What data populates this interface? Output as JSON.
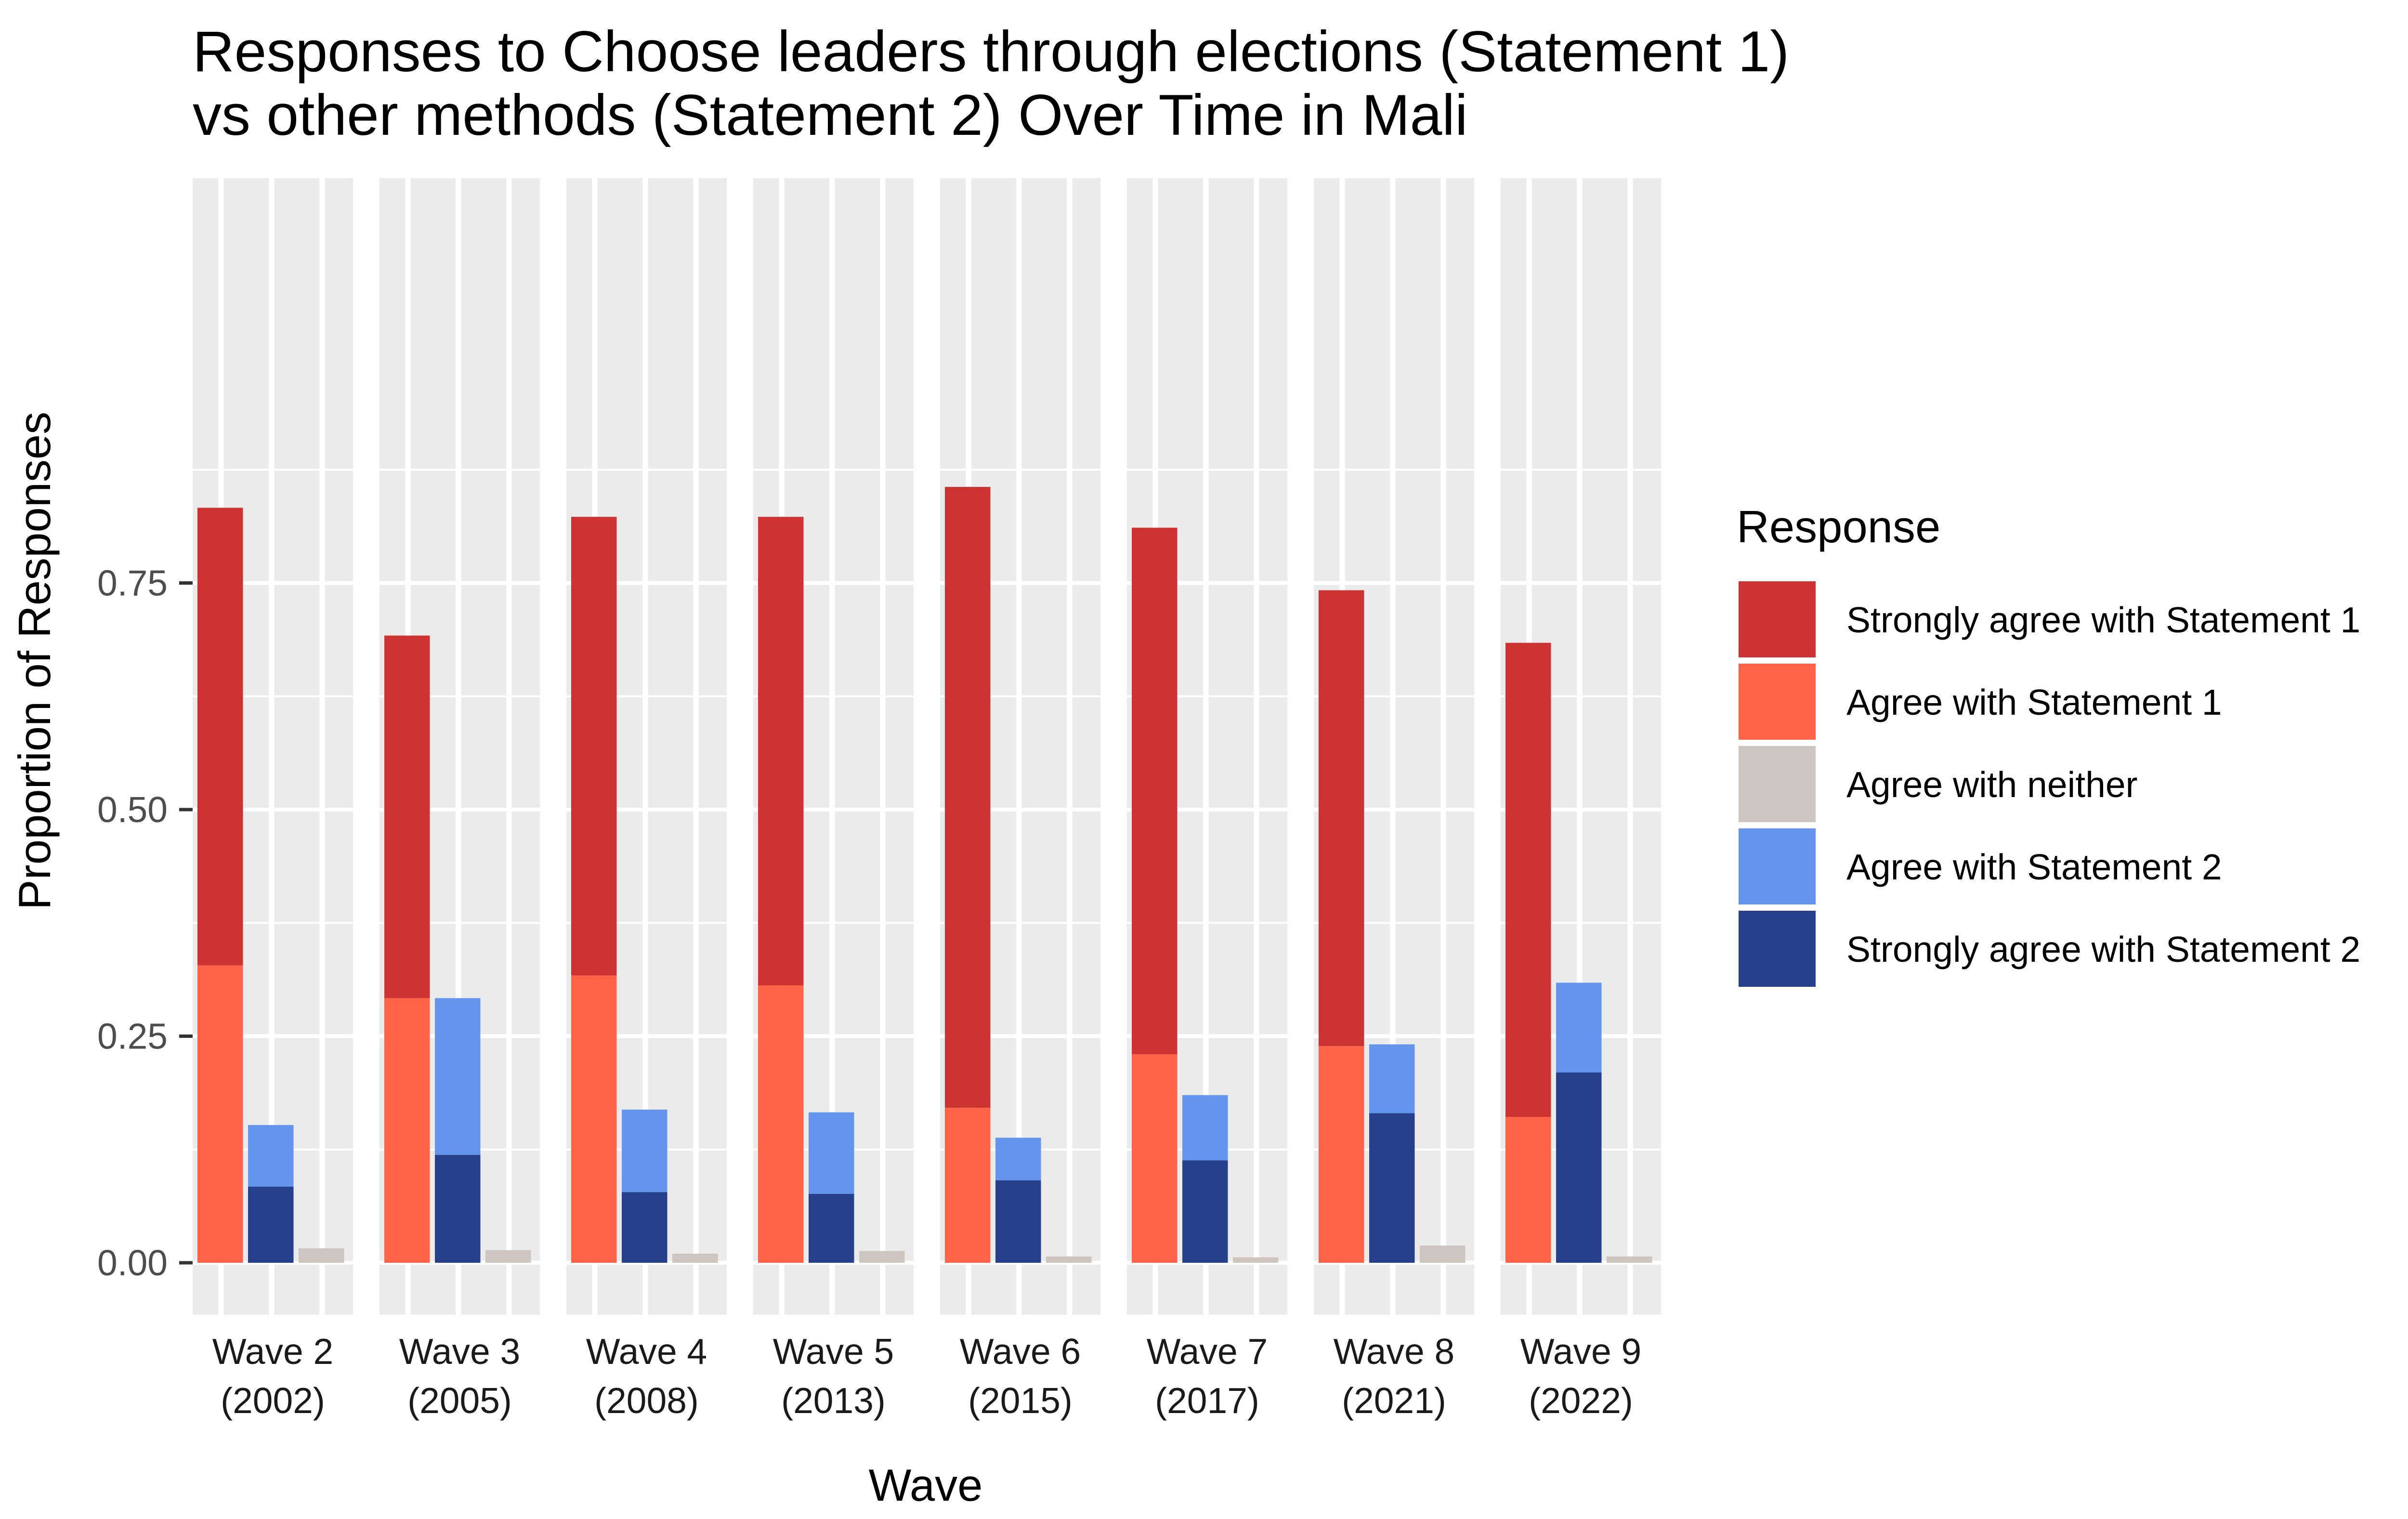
{
  "chart_data": {
    "type": "bar",
    "title_lines": [
      "Responses to Choose leaders through elections (Statement 1)",
      "vs other methods (Statement 2) Over Time in Mali"
    ],
    "xlabel": "Wave",
    "ylabel": "Proportion of Responses",
    "ylim": [
      0,
      0.875
    ],
    "yticks": [
      "0.00",
      "0.25",
      "0.50",
      "0.75"
    ],
    "ytick_values": [
      0,
      0.25,
      0.5,
      0.75
    ],
    "grid": true,
    "legend_position": "right",
    "legend": {
      "title": "Response",
      "entries": [
        {
          "label": "Strongly agree with Statement 1",
          "color": "#CD3333"
        },
        {
          "label": "Agree with Statement 1",
          "color": "#FF6347"
        },
        {
          "label": "Agree with neither",
          "color": "#CDC5BF"
        },
        {
          "label": "Agree with Statement 2",
          "color": "#6495ED"
        },
        {
          "label": "Strongly agree with Statement 2",
          "color": "#27408B"
        }
      ]
    },
    "facets": [
      {
        "label_line1": "Wave 2",
        "label_line2": "(2002)",
        "strongly_agree_s1": 0.505,
        "agree_s1": 0.328,
        "neither": 0.016,
        "agree_s2": 0.068,
        "strongly_agree_s2": 0.084
      },
      {
        "label_line1": "Wave 3",
        "label_line2": "(2005)",
        "strongly_agree_s1": 0.4,
        "agree_s1": 0.292,
        "neither": 0.014,
        "agree_s2": 0.173,
        "strongly_agree_s2": 0.119
      },
      {
        "label_line1": "Wave 4",
        "label_line2": "(2008)",
        "strongly_agree_s1": 0.506,
        "agree_s1": 0.317,
        "neither": 0.01,
        "agree_s2": 0.091,
        "strongly_agree_s2": 0.078
      },
      {
        "label_line1": "Wave 5",
        "label_line2": "(2013)",
        "strongly_agree_s1": 0.517,
        "agree_s1": 0.306,
        "neither": 0.013,
        "agree_s2": 0.09,
        "strongly_agree_s2": 0.076
      },
      {
        "label_line1": "Wave 6",
        "label_line2": "(2015)",
        "strongly_agree_s1": 0.685,
        "agree_s1": 0.171,
        "neither": 0.007,
        "agree_s2": 0.047,
        "strongly_agree_s2": 0.091
      },
      {
        "label_line1": "Wave 7",
        "label_line2": "(2017)",
        "strongly_agree_s1": 0.581,
        "agree_s1": 0.23,
        "neither": 0.006,
        "agree_s2": 0.072,
        "strongly_agree_s2": 0.113
      },
      {
        "label_line1": "Wave 8",
        "label_line2": "(2021)",
        "strongly_agree_s1": 0.503,
        "agree_s1": 0.239,
        "neither": 0.019,
        "agree_s2": 0.076,
        "strongly_agree_s2": 0.165
      },
      {
        "label_line1": "Wave 9",
        "label_line2": "(2022)",
        "strongly_agree_s1": 0.523,
        "agree_s1": 0.161,
        "neither": 0.007,
        "agree_s2": 0.099,
        "strongly_agree_s2": 0.21
      }
    ]
  }
}
